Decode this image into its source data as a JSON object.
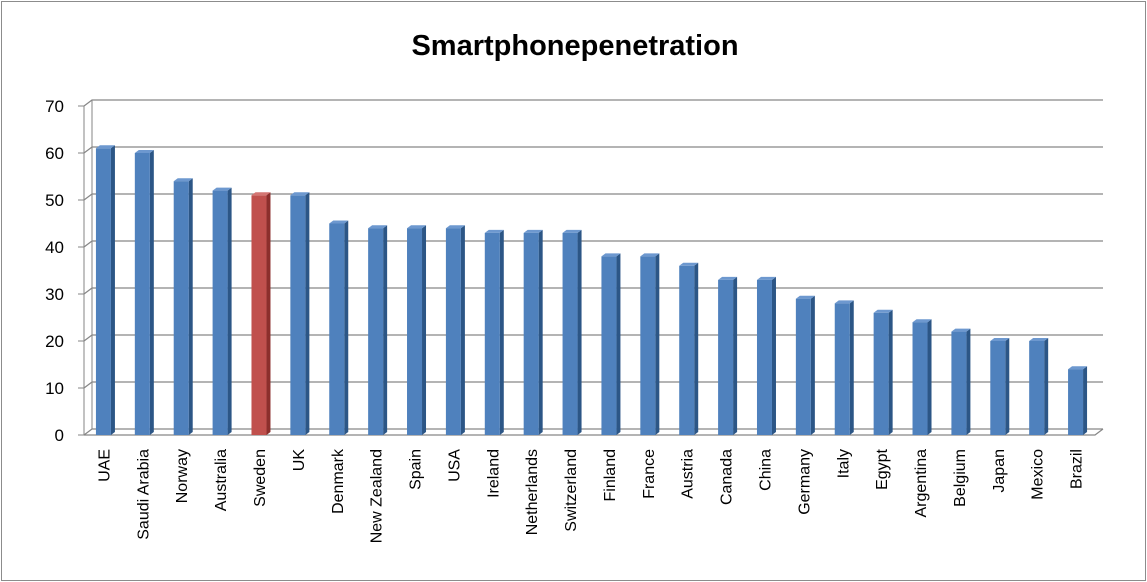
{
  "chart_data": {
    "type": "bar",
    "title": "Smartphonepenetration",
    "xlabel": "",
    "ylabel": "",
    "ylim": [
      0,
      70
    ],
    "yticks": [
      0,
      10,
      20,
      30,
      40,
      50,
      60,
      70
    ],
    "grid": true,
    "legend": "none",
    "categories": [
      "UAE",
      "Saudi Arabia",
      "Norway",
      "Australia",
      "Sweden",
      "UK",
      "Denmark",
      "New Zealand",
      "Spain",
      "USA",
      "Ireland",
      "Netherlands",
      "Switzerland",
      "Finland",
      "France",
      "Austria",
      "Canada",
      "China",
      "Germany",
      "Italy",
      "Egypt",
      "Argentina",
      "Belgium",
      "Japan",
      "Mexico",
      "Brazil"
    ],
    "values": [
      61,
      60,
      54,
      52,
      51,
      51,
      45,
      44,
      44,
      44,
      43,
      43,
      43,
      38,
      38,
      36,
      33,
      33,
      29,
      28,
      26,
      24,
      22,
      20,
      20,
      14
    ],
    "highlight_category": "Sweden",
    "colors": {
      "bar": "#4f81bd",
      "bar_side": "#2c5686",
      "bar_top": "#6d98cf",
      "highlight": "#c0504d",
      "highlight_side": "#8c2f2c",
      "highlight_top": "#d47572",
      "grid": "#868686",
      "axis": "#868686"
    }
  }
}
